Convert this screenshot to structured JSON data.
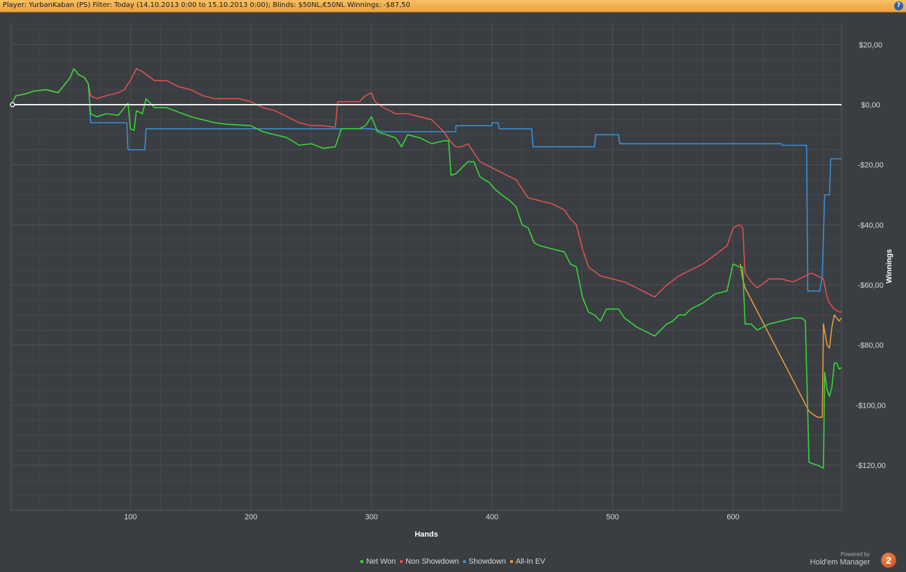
{
  "header": {
    "title": "Player: YurbanKaban (PS) Filter: Today (14.10.2013 0:00 to 15.10.2013 0:00); Blinds: $50NL,€50NL Winnings: -$87,50",
    "help_label": "?"
  },
  "branding": {
    "powered_by": "Powered by",
    "name": "Hold'em Manager",
    "logo_text": "2"
  },
  "colors": {
    "background": "#3a3e42",
    "grid": "#4f5357",
    "zero_line": "#f0f0f0",
    "net_won": "#38d838",
    "non_showdown": "#e05050",
    "showdown": "#3a8fd8",
    "all_in_ev": "#e89a3a"
  },
  "chart_data": {
    "type": "line",
    "title": "",
    "xlabel": "Hands",
    "ylabel": "Winnings",
    "xlim": [
      1,
      690
    ],
    "ylim": [
      -135,
      27
    ],
    "x_ticks": [
      100,
      200,
      300,
      400,
      500,
      600
    ],
    "x_tick_labels": [
      "100",
      "200",
      "300",
      "400",
      "500",
      "600"
    ],
    "y_ticks": [
      20,
      0,
      -20,
      -40,
      -60,
      -80,
      -100,
      -120
    ],
    "y_tick_labels": [
      "$20,00",
      "$0,00",
      "-$20,00",
      "-$40,00",
      "-$60,00",
      "-$80,00",
      "-$100,00",
      "-$120,00"
    ],
    "grid": true,
    "legend_position": "bottom",
    "series": [
      {
        "name": "Net Won",
        "color": "#38d838",
        "points": [
          [
            1,
            0
          ],
          [
            5,
            3
          ],
          [
            12,
            3.5
          ],
          [
            20,
            4.5
          ],
          [
            30,
            5
          ],
          [
            40,
            4
          ],
          [
            45,
            6.5
          ],
          [
            50,
            9
          ],
          [
            53,
            12
          ],
          [
            57,
            10
          ],
          [
            62,
            9
          ],
          [
            65,
            7
          ],
          [
            67,
            -3
          ],
          [
            72,
            -4
          ],
          [
            80,
            -3
          ],
          [
            90,
            -3.5
          ],
          [
            95,
            -1
          ],
          [
            98,
            0.5
          ],
          [
            100,
            -8
          ],
          [
            103,
            -8.5
          ],
          [
            105,
            -2
          ],
          [
            110,
            -3
          ],
          [
            113,
            2
          ],
          [
            120,
            -1
          ],
          [
            130,
            -1
          ],
          [
            150,
            -4
          ],
          [
            170,
            -6
          ],
          [
            180,
            -6.5
          ],
          [
            200,
            -7
          ],
          [
            210,
            -9
          ],
          [
            220,
            -10
          ],
          [
            230,
            -11
          ],
          [
            240,
            -13.5
          ],
          [
            250,
            -13
          ],
          [
            260,
            -14.5
          ],
          [
            270,
            -14
          ],
          [
            275,
            -8
          ],
          [
            280,
            -8
          ],
          [
            290,
            -8
          ],
          [
            295,
            -7
          ],
          [
            300,
            -4
          ],
          [
            305,
            -9
          ],
          [
            320,
            -11
          ],
          [
            325,
            -14
          ],
          [
            330,
            -10
          ],
          [
            340,
            -11
          ],
          [
            350,
            -13
          ],
          [
            360,
            -12
          ],
          [
            364,
            -12
          ],
          [
            366,
            -23.5
          ],
          [
            370,
            -23
          ],
          [
            375,
            -21
          ],
          [
            380,
            -19
          ],
          [
            385,
            -19
          ],
          [
            390,
            -24
          ],
          [
            398,
            -26
          ],
          [
            402,
            -28
          ],
          [
            408,
            -30
          ],
          [
            415,
            -32
          ],
          [
            420,
            -34
          ],
          [
            425,
            -40
          ],
          [
            430,
            -41
          ],
          [
            435,
            -46
          ],
          [
            440,
            -47
          ],
          [
            450,
            -48
          ],
          [
            460,
            -49
          ],
          [
            465,
            -53
          ],
          [
            470,
            -54
          ],
          [
            475,
            -64
          ],
          [
            480,
            -69
          ],
          [
            485,
            -70
          ],
          [
            490,
            -72
          ],
          [
            495,
            -68
          ],
          [
            505,
            -68
          ],
          [
            510,
            -71
          ],
          [
            520,
            -74
          ],
          [
            530,
            -76
          ],
          [
            535,
            -77
          ],
          [
            540,
            -75
          ],
          [
            545,
            -73
          ],
          [
            550,
            -72
          ],
          [
            555,
            -70
          ],
          [
            560,
            -70
          ],
          [
            565,
            -68
          ],
          [
            575,
            -66
          ],
          [
            585,
            -63
          ],
          [
            595,
            -62
          ],
          [
            600,
            -53
          ],
          [
            605,
            -54
          ],
          [
            608,
            -54
          ],
          [
            610,
            -73
          ],
          [
            615,
            -73
          ],
          [
            620,
            -75
          ],
          [
            625,
            -74
          ],
          [
            630,
            -73
          ],
          [
            640,
            -72
          ],
          [
            650,
            -71
          ],
          [
            657,
            -71
          ],
          [
            660,
            -72
          ],
          [
            663,
            -119
          ],
          [
            670,
            -120
          ],
          [
            675,
            -121
          ],
          [
            676,
            -89
          ],
          [
            678,
            -95
          ],
          [
            680,
            -97
          ],
          [
            682,
            -94
          ],
          [
            684,
            -86
          ],
          [
            686,
            -86
          ],
          [
            688,
            -88
          ],
          [
            690,
            -87.5
          ]
        ]
      },
      {
        "name": "Non Showdown",
        "color": "#e05050",
        "points": [
          [
            1,
            0
          ],
          [
            5,
            3
          ],
          [
            12,
            3.5
          ],
          [
            20,
            4.5
          ],
          [
            30,
            5
          ],
          [
            40,
            4
          ],
          [
            45,
            6.5
          ],
          [
            50,
            9
          ],
          [
            53,
            12
          ],
          [
            57,
            10
          ],
          [
            62,
            9
          ],
          [
            65,
            7
          ],
          [
            67,
            3
          ],
          [
            72,
            2
          ],
          [
            80,
            3
          ],
          [
            90,
            4
          ],
          [
            95,
            5
          ],
          [
            98,
            7
          ],
          [
            100,
            8
          ],
          [
            105,
            12
          ],
          [
            110,
            11
          ],
          [
            120,
            8
          ],
          [
            130,
            8
          ],
          [
            140,
            6
          ],
          [
            150,
            5
          ],
          [
            160,
            3
          ],
          [
            170,
            2
          ],
          [
            180,
            2
          ],
          [
            190,
            2
          ],
          [
            200,
            1
          ],
          [
            210,
            -1
          ],
          [
            220,
            -2
          ],
          [
            230,
            -4
          ],
          [
            240,
            -6
          ],
          [
            250,
            -7
          ],
          [
            260,
            -7
          ],
          [
            270,
            -7.5
          ],
          [
            272,
            1
          ],
          [
            280,
            1
          ],
          [
            290,
            1
          ],
          [
            295,
            3
          ],
          [
            300,
            4
          ],
          [
            303,
            1
          ],
          [
            310,
            -1
          ],
          [
            320,
            -3
          ],
          [
            330,
            -3
          ],
          [
            340,
            -4
          ],
          [
            350,
            -5
          ],
          [
            355,
            -7
          ],
          [
            360,
            -9
          ],
          [
            365,
            -12
          ],
          [
            370,
            -14
          ],
          [
            375,
            -14
          ],
          [
            380,
            -13
          ],
          [
            385,
            -16
          ],
          [
            390,
            -19
          ],
          [
            395,
            -20
          ],
          [
            400,
            -21
          ],
          [
            410,
            -23
          ],
          [
            420,
            -25
          ],
          [
            425,
            -28
          ],
          [
            430,
            -31
          ],
          [
            440,
            -32
          ],
          [
            450,
            -33
          ],
          [
            460,
            -35
          ],
          [
            465,
            -38
          ],
          [
            470,
            -40
          ],
          [
            475,
            -48
          ],
          [
            480,
            -54
          ],
          [
            490,
            -57
          ],
          [
            500,
            -58
          ],
          [
            510,
            -59
          ],
          [
            520,
            -61
          ],
          [
            530,
            -63
          ],
          [
            535,
            -64
          ],
          [
            545,
            -60
          ],
          [
            555,
            -57
          ],
          [
            565,
            -55
          ],
          [
            575,
            -53
          ],
          [
            585,
            -50
          ],
          [
            595,
            -47
          ],
          [
            600,
            -41
          ],
          [
            605,
            -40
          ],
          [
            608,
            -41
          ],
          [
            610,
            -56
          ],
          [
            615,
            -59
          ],
          [
            620,
            -61
          ],
          [
            630,
            -58
          ],
          [
            640,
            -58
          ],
          [
            650,
            -59
          ],
          [
            655,
            -58
          ],
          [
            660,
            -57
          ],
          [
            665,
            -56
          ],
          [
            670,
            -57
          ],
          [
            675,
            -58
          ],
          [
            678,
            -64
          ],
          [
            680,
            -66
          ],
          [
            684,
            -68
          ],
          [
            688,
            -69
          ],
          [
            690,
            -69
          ]
        ]
      },
      {
        "name": "Showdown",
        "color": "#3a8fd8",
        "points": [
          [
            1,
            0
          ],
          [
            66,
            0
          ],
          [
            67,
            -6
          ],
          [
            80,
            -6
          ],
          [
            97,
            -6
          ],
          [
            98,
            -15
          ],
          [
            105,
            -15
          ],
          [
            112,
            -15
          ],
          [
            113,
            -8
          ],
          [
            200,
            -8
          ],
          [
            240,
            -8
          ],
          [
            250,
            -8
          ],
          [
            260,
            -8
          ],
          [
            270,
            -8
          ],
          [
            280,
            -8
          ],
          [
            300,
            -8
          ],
          [
            310,
            -9
          ],
          [
            360,
            -9
          ],
          [
            370,
            -9
          ],
          [
            370,
            -7
          ],
          [
            400,
            -7
          ],
          [
            400,
            -6
          ],
          [
            405,
            -6
          ],
          [
            406,
            -8
          ],
          [
            433,
            -8
          ],
          [
            434,
            -14
          ],
          [
            480,
            -14
          ],
          [
            485,
            -14
          ],
          [
            486,
            -10
          ],
          [
            505,
            -10
          ],
          [
            506,
            -13
          ],
          [
            640,
            -13
          ],
          [
            641,
            -13.5
          ],
          [
            661,
            -13.5
          ],
          [
            662,
            -62
          ],
          [
            672,
            -62
          ],
          [
            674,
            -57
          ],
          [
            676,
            -30
          ],
          [
            680,
            -30
          ],
          [
            681,
            -18
          ],
          [
            684,
            -18
          ],
          [
            690,
            -18
          ]
        ]
      },
      {
        "name": "All-In EV",
        "color": "#e89a3a",
        "points": [
          [
            606,
            -53
          ],
          [
            608,
            -58
          ],
          [
            610,
            -61
          ],
          [
            663,
            -102
          ],
          [
            666,
            -103
          ],
          [
            670,
            -104
          ],
          [
            674,
            -104
          ],
          [
            675,
            -73
          ],
          [
            678,
            -80
          ],
          [
            680,
            -81
          ],
          [
            682,
            -74
          ],
          [
            684,
            -70
          ],
          [
            686,
            -71
          ],
          [
            688,
            -72
          ],
          [
            690,
            -71
          ]
        ]
      }
    ]
  }
}
